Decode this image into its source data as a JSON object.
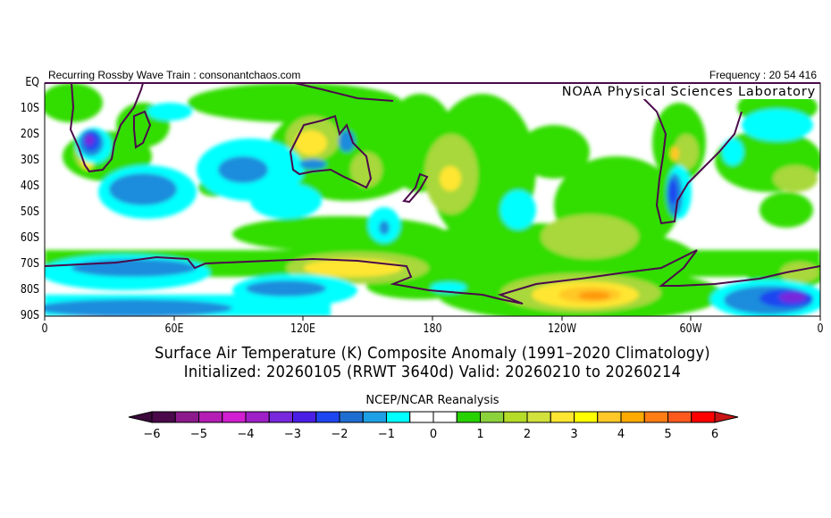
{
  "header": {
    "left_text": "Recurring Rossby Wave Train : consonantchaos.com",
    "right_text": "Frequency : 20 54 416"
  },
  "map": {
    "credit": "NOAA Physical Sciences Laboratory",
    "lat_labels": [
      "EQ",
      "10S",
      "20S",
      "30S",
      "40S",
      "50S",
      "60S",
      "70S",
      "80S",
      "90S"
    ],
    "lon_labels": [
      "0",
      "60E",
      "120E",
      "180",
      "120W",
      "60W",
      "0"
    ],
    "coastline_color": "#4b0a4b"
  },
  "titles": {
    "line1": "Surface Air Temperature (K) Composite Anomaly (1991–2020 Climatology)",
    "line2": "Initialized: 20260105 (RRWT 3640d) Valid: 20260210 to 20260214"
  },
  "colorbar": {
    "label": "NCEP/NCAR Reanalysis",
    "tick_labels": [
      "−6",
      "−5",
      "−4",
      "−3",
      "−2",
      "−1",
      "0",
      "1",
      "2",
      "3",
      "4",
      "5",
      "6"
    ],
    "min": -6,
    "max": 6,
    "step": 0.5,
    "under_color": "#3c0a3c",
    "over_color": "#c81414",
    "colors": [
      "#4a0a4a",
      "#8c1a8c",
      "#b41eb4",
      "#d01ed0",
      "#a020c8",
      "#7828dc",
      "#4b1ee6",
      "#1e46f0",
      "#1e6ed2",
      "#1ea0e6",
      "#00ffff",
      "#ffffff",
      "#ffffff",
      "#28d200",
      "#8cd23c",
      "#b4dc28",
      "#d2e13c",
      "#ffe632",
      "#ffff00",
      "#ffc828",
      "#ffaa00",
      "#ff7d14",
      "#ff5a1e",
      "#ff0000"
    ]
  }
}
